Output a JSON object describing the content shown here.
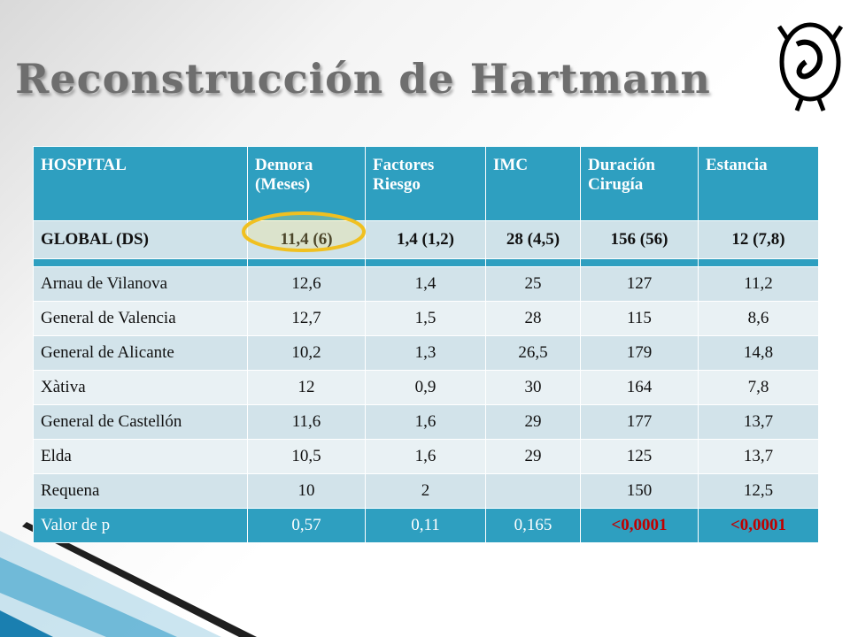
{
  "title": "Reconstrucción de Hartmann",
  "table": {
    "header": [
      "HOSPITAL",
      "Demora (Meses)",
      "Factores Riesgo",
      "IMC",
      "Duración Cirugía",
      "Estancia"
    ],
    "global": [
      "GLOBAL (DS)",
      "11,4 (6)",
      "1,4 (1,2)",
      "28 (4,5)",
      "156 (56)",
      "12 (7,8)"
    ],
    "rows": [
      [
        "Arnau de Vilanova",
        "12,6",
        "1,4",
        "25",
        "127",
        "11,2"
      ],
      [
        "General de Valencia",
        "12,7",
        "1,5",
        "28",
        "115",
        "8,6"
      ],
      [
        "General de Alicante",
        "10,2",
        "1,3",
        "26,5",
        "179",
        "14,8"
      ],
      [
        "Xàtiva",
        "12",
        "0,9",
        "30",
        "164",
        "7,8"
      ],
      [
        "General de Castellón",
        "11,6",
        "1,6",
        "29",
        "177",
        "13,7"
      ],
      [
        "Elda",
        "10,5",
        "1,6",
        "29",
        "125",
        "13,7"
      ],
      [
        "Requena",
        "10",
        "2",
        null,
        "150",
        "12,5"
      ]
    ],
    "pvalue": [
      "Valor de p",
      "0,57",
      "0,11",
      "0,165",
      "<0,0001",
      "<0,0001"
    ]
  }
}
